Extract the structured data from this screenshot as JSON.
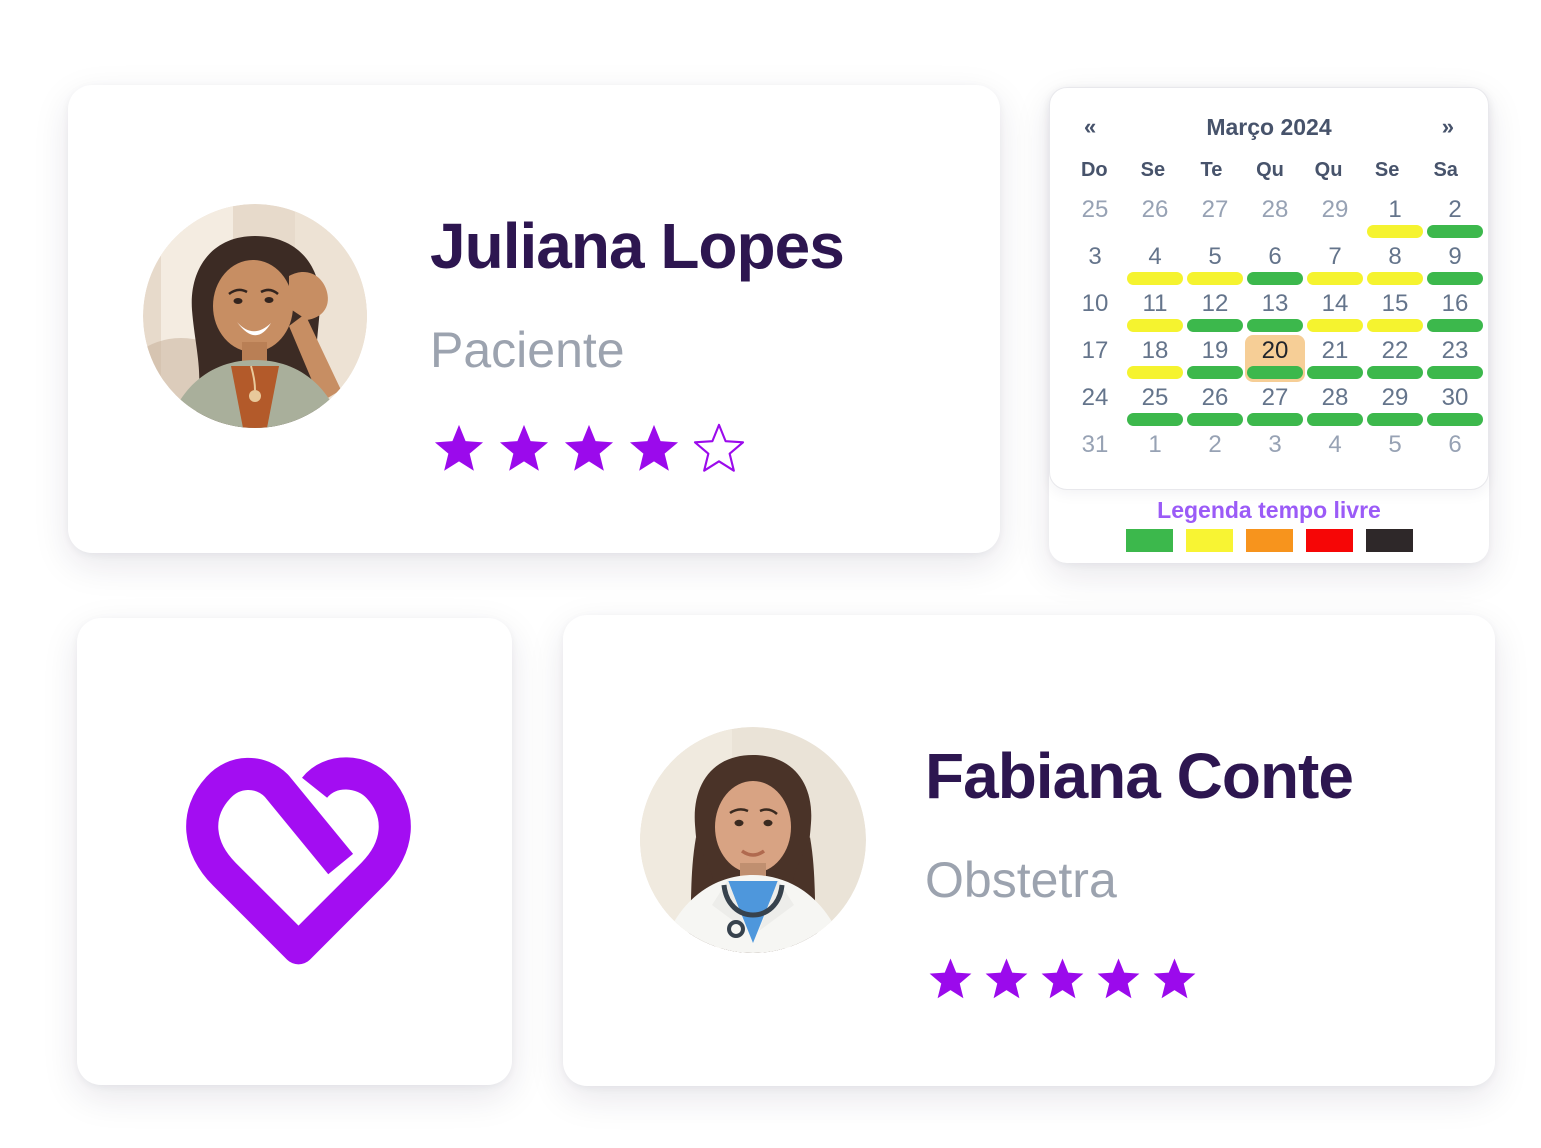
{
  "patient_card": {
    "name": "Juliana Lopes",
    "role": "Paciente",
    "rating": 4,
    "max_rating": 5
  },
  "doctor_card": {
    "name": "Fabiana Conte",
    "role": "Obstetra",
    "rating": 5,
    "max_rating": 5
  },
  "logo_card": {
    "icon": "heart-logo"
  },
  "calendar": {
    "title": "Março 2024",
    "prev_label": "«",
    "next_label": "»",
    "weekdays": [
      "Do",
      "Se",
      "Te",
      "Qu",
      "Qu",
      "Se",
      "Sa"
    ],
    "selected_day": "20",
    "weeks": [
      [
        {
          "d": "25",
          "muted": true
        },
        {
          "d": "26",
          "muted": true
        },
        {
          "d": "27",
          "muted": true
        },
        {
          "d": "28",
          "muted": true
        },
        {
          "d": "29",
          "muted": true
        },
        {
          "d": "1",
          "bar": "yellow"
        },
        {
          "d": "2",
          "bar": "green"
        }
      ],
      [
        {
          "d": "3"
        },
        {
          "d": "4",
          "bar": "yellow"
        },
        {
          "d": "5",
          "bar": "yellow"
        },
        {
          "d": "6",
          "bar": "green"
        },
        {
          "d": "7",
          "bar": "yellow"
        },
        {
          "d": "8",
          "bar": "yellow"
        },
        {
          "d": "9",
          "bar": "green"
        }
      ],
      [
        {
          "d": "10"
        },
        {
          "d": "11",
          "bar": "yellow"
        },
        {
          "d": "12",
          "bar": "green"
        },
        {
          "d": "13",
          "bar": "green"
        },
        {
          "d": "14",
          "bar": "yellow"
        },
        {
          "d": "15",
          "bar": "yellow"
        },
        {
          "d": "16",
          "bar": "green"
        }
      ],
      [
        {
          "d": "17"
        },
        {
          "d": "18",
          "bar": "yellow"
        },
        {
          "d": "19",
          "bar": "green"
        },
        {
          "d": "20",
          "bar": "green",
          "selected": true
        },
        {
          "d": "21",
          "bar": "green"
        },
        {
          "d": "22",
          "bar": "green"
        },
        {
          "d": "23",
          "bar": "green"
        }
      ],
      [
        {
          "d": "24"
        },
        {
          "d": "25",
          "bar": "green"
        },
        {
          "d": "26",
          "bar": "green"
        },
        {
          "d": "27",
          "bar": "green"
        },
        {
          "d": "28",
          "bar": "green"
        },
        {
          "d": "29",
          "bar": "green"
        },
        {
          "d": "30",
          "bar": "green"
        }
      ],
      [
        {
          "d": "31",
          "muted": true
        },
        {
          "d": "1",
          "muted": true
        },
        {
          "d": "2",
          "muted": true
        },
        {
          "d": "3",
          "muted": true
        },
        {
          "d": "4",
          "muted": true
        },
        {
          "d": "5",
          "muted": true
        },
        {
          "d": "6",
          "muted": true
        }
      ]
    ],
    "legend": {
      "title": "Legenda tempo livre",
      "colors": [
        "#3CB84C",
        "#F8F433",
        "#F7941D",
        "#F60606",
        "#2E2829"
      ]
    }
  },
  "colors": {
    "accent_purple": "#9B0AEC",
    "heart_purple": "#A30DF2",
    "name_text": "#2D1650",
    "role_text": "#9CA3AF",
    "calendar_header_text": "#47536B",
    "calendar_day_text": "#64748B",
    "calendar_day_muted_text": "#97A2B4",
    "selected_day_bg": "#F6CE96",
    "selected_day_text": "#20242B",
    "bar_green": "#3CB84C",
    "bar_yellow": "#F5F32F",
    "legend_title_text": "#9B5BF7"
  }
}
